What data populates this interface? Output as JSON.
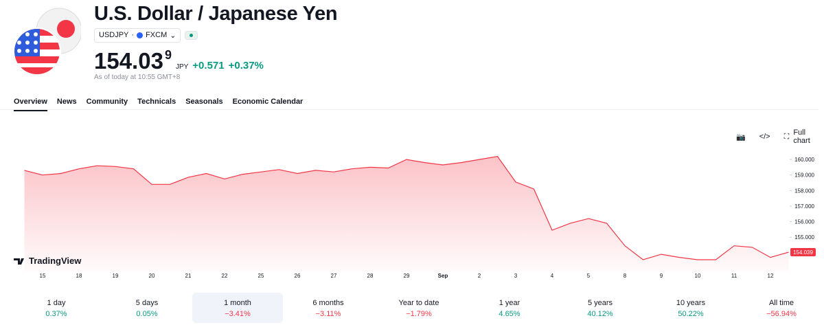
{
  "header": {
    "title": "U.S. Dollar / Japanese Yen",
    "symbol": "USDJPY",
    "exchange": "FXCM",
    "price": "154.03",
    "price_last_digit": "9",
    "currency": "JPY",
    "change": "+0.571",
    "change_percent": "+0.37%",
    "as_of": "As of today at 10:55 GMT+8"
  },
  "tabs": [
    "Overview",
    "News",
    "Community",
    "Technicals",
    "Seasonals",
    "Economic Calendar"
  ],
  "toolbar": {
    "full_chart": "Full chart"
  },
  "chart_data": {
    "type": "line",
    "brand": "TradingView",
    "color": "#f23645",
    "categories": [
      null,
      "15",
      null,
      "18",
      null,
      "19",
      null,
      "20",
      null,
      "21",
      null,
      "22",
      null,
      "25",
      null,
      "26",
      null,
      "27",
      null,
      "28",
      null,
      "29",
      null,
      "Sep",
      null,
      "2",
      null,
      "3",
      null,
      "4",
      null,
      "5",
      null,
      "8",
      null,
      "9",
      null,
      "10",
      null,
      "11",
      null,
      "12",
      null
    ],
    "values": [
      159.3,
      159.0,
      159.1,
      159.4,
      159.6,
      159.55,
      159.4,
      158.4,
      158.4,
      158.85,
      159.1,
      158.75,
      159.05,
      159.2,
      159.35,
      159.1,
      159.3,
      159.2,
      159.4,
      159.5,
      159.45,
      160.0,
      159.8,
      159.65,
      159.8,
      160.0,
      160.2,
      158.55,
      158.1,
      155.45,
      155.9,
      156.2,
      155.9,
      154.45,
      153.55,
      153.9,
      153.7,
      153.55,
      153.55,
      154.45,
      154.35,
      153.7,
      154.039
    ],
    "last_value": 154.039,
    "ylim": [
      152.8,
      160.8
    ],
    "yticks": [
      {
        "value": 155,
        "label": "155.000"
      },
      {
        "value": 156,
        "label": "156.000"
      },
      {
        "value": 157,
        "label": "157.000"
      },
      {
        "value": 158,
        "label": "158.000"
      },
      {
        "value": 159,
        "label": "159.000"
      },
      {
        "value": 160,
        "label": "160.000"
      }
    ]
  },
  "periods": [
    {
      "label": "1 day",
      "change": "0.37%",
      "color": "#089981"
    },
    {
      "label": "5 days",
      "change": "0.05%",
      "color": "#089981"
    },
    {
      "label": "1 month",
      "change": "−3.41%",
      "color": "#f23645",
      "selected": true
    },
    {
      "label": "6 months",
      "change": "−3.11%",
      "color": "#f23645"
    },
    {
      "label": "Year to date",
      "change": "−1.79%",
      "color": "#f23645"
    },
    {
      "label": "1 year",
      "change": "4.65%",
      "color": "#089981"
    },
    {
      "label": "5 years",
      "change": "40.12%",
      "color": "#089981"
    },
    {
      "label": "10 years",
      "change": "50.22%",
      "color": "#089981"
    },
    {
      "label": "All time",
      "change": "−56.94%",
      "color": "#f23645"
    }
  ]
}
